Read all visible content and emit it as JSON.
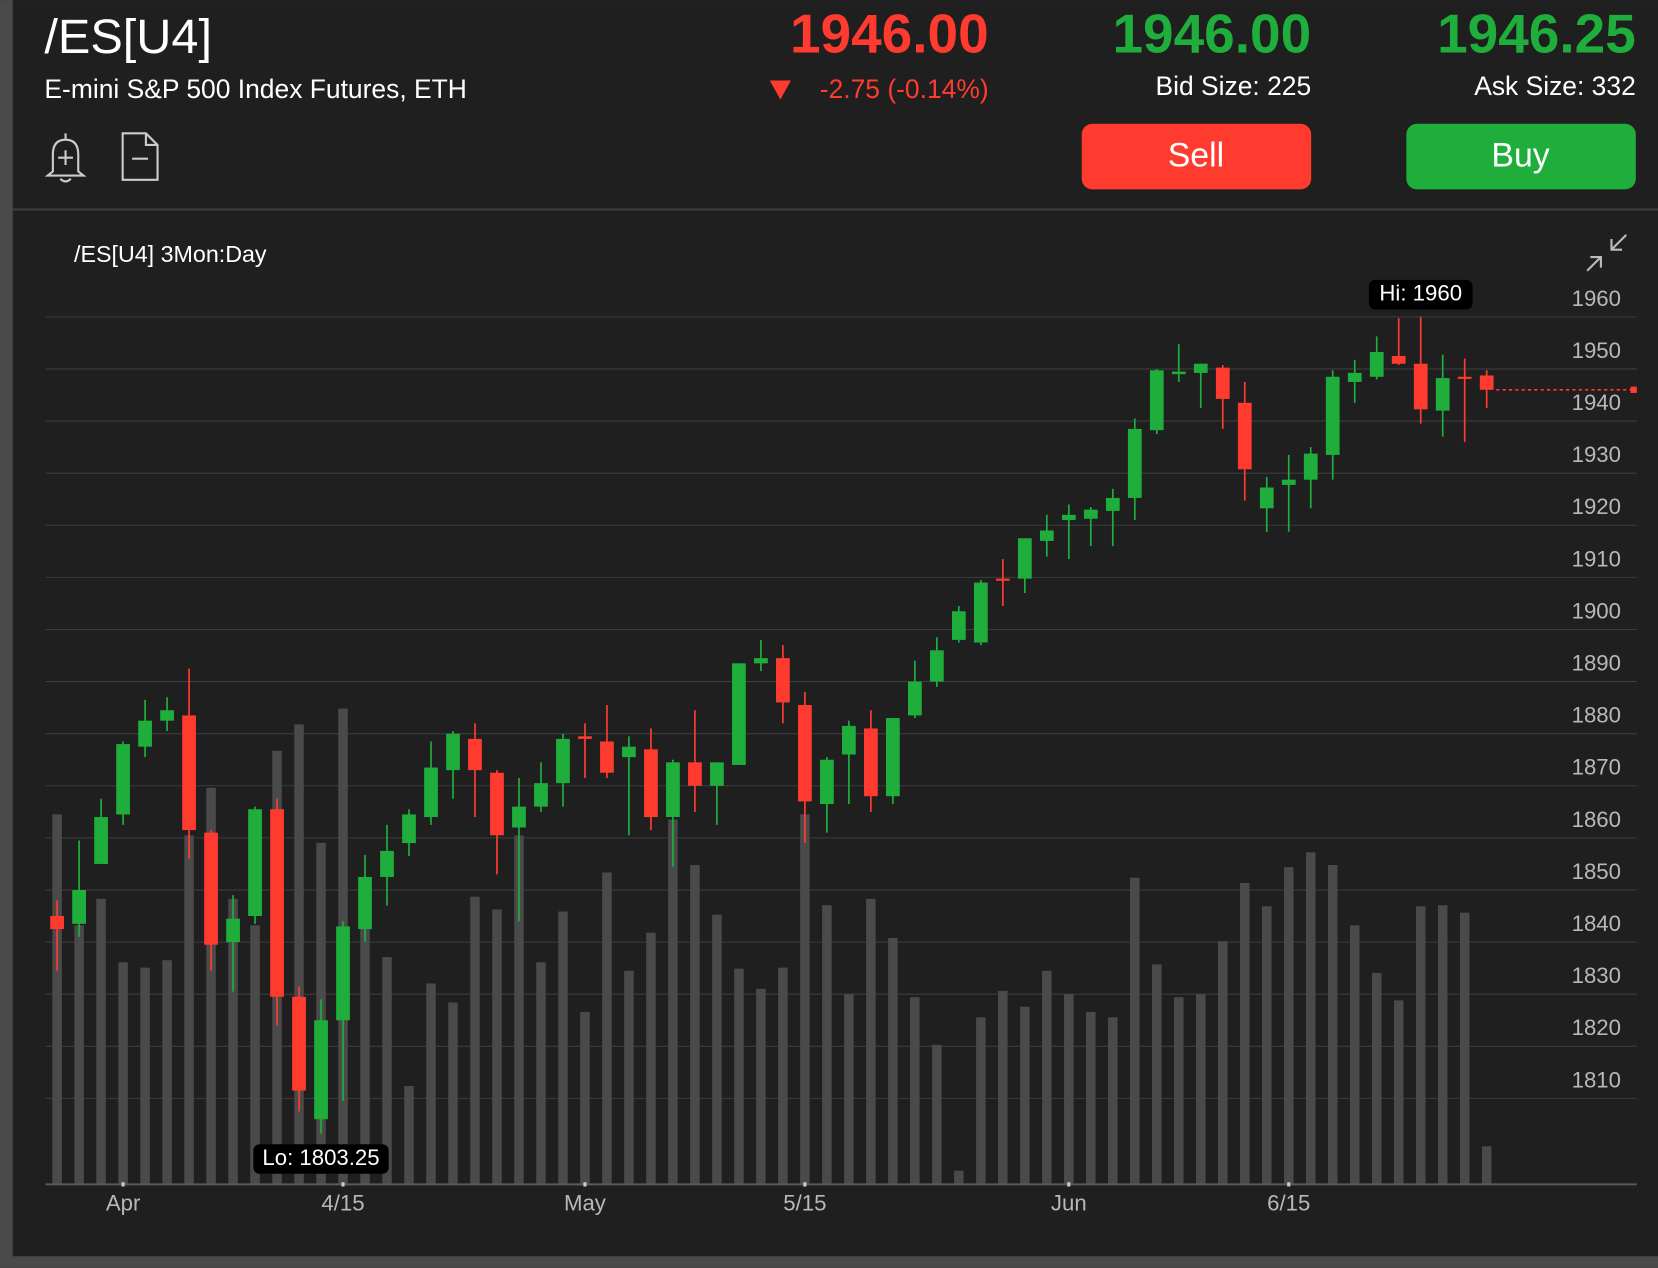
{
  "header": {
    "symbol": "/ES[U4]",
    "description": "E-mini S&P 500 Index Futures, ETH",
    "last": "1946.00",
    "change": "-2.75 (-0.14%)",
    "bid": "1946.00",
    "bid_size": "Bid Size: 225",
    "ask": "1946.25",
    "ask_size": "Ask Size: 332",
    "sell": "Sell",
    "buy": "Buy"
  },
  "chart_data": {
    "type": "candlestick",
    "title": "/ES[U4] 3Mon:Day",
    "categories": [
      null,
      null,
      null,
      "Apr",
      null,
      null,
      null,
      null,
      null,
      null,
      null,
      null,
      null,
      "4/15",
      null,
      null,
      null,
      null,
      null,
      null,
      null,
      null,
      null,
      null,
      "May",
      null,
      null,
      null,
      null,
      null,
      null,
      null,
      null,
      null,
      "5/15",
      null,
      null,
      null,
      null,
      null,
      null,
      null,
      null,
      null,
      null,
      null,
      "Jun",
      null,
      null,
      null,
      null,
      null,
      null,
      null,
      null,
      null,
      "6/15",
      null,
      null,
      null,
      null,
      null,
      null,
      null,
      null,
      null
    ],
    "open": [
      1845,
      1843.5,
      1855,
      1864.5,
      1877.5,
      1882.5,
      1883.5,
      1861,
      1840,
      1845,
      1865.5,
      1829.5,
      1806,
      1825,
      1842.5,
      1852.5,
      1859,
      1864,
      1873,
      1879,
      1872.5,
      1862,
      1866,
      1870.5,
      1879.5,
      1878.5,
      1875.5,
      1877,
      1864,
      1874.5,
      1870,
      1874,
      1893.5,
      1894.5,
      1885.5,
      1866.5,
      1876,
      1881,
      1868,
      1883.5,
      1890,
      1898,
      1897.5,
      1909.75,
      1909.75,
      1917,
      1921,
      1921.25,
      1922.75,
      1925.25,
      1938.25,
      1949,
      1949.25,
      1950.25,
      1943.5,
      1923.25,
      1927.75,
      1928.75,
      1933.5,
      1947.5,
      1948.5,
      1952.5,
      1951,
      1942,
      1948.5,
      1948.75
    ],
    "high": [
      1848,
      1859.5,
      1867.5,
      1878.5,
      1886.5,
      1887,
      1892.5,
      1861.5,
      1849,
      1866,
      1867.5,
      1831.5,
      1829,
      1844,
      1856.75,
      1862.5,
      1865.5,
      1878.5,
      1880.5,
      1882,
      1873,
      1871.5,
      1874.5,
      1880,
      1882,
      1885.5,
      1879.5,
      1881,
      1875,
      1884.5,
      1874.5,
      1893.5,
      1898,
      1897,
      1888,
      1875.5,
      1882.5,
      1884.5,
      1883,
      1894,
      1898.5,
      1904.5,
      1909.5,
      1913.5,
      1917.5,
      1922,
      1924,
      1923.5,
      1927,
      1940.5,
      1950,
      1954.75,
      1951,
      1950.75,
      1947.5,
      1929.25,
      1933.5,
      1935,
      1949.75,
      1951.75,
      1956.25,
      1959.75,
      1960,
      1952.75,
      1952,
      1949.75
    ],
    "low": [
      1834.5,
      1841,
      1855,
      1862.5,
      1875.5,
      1880.5,
      1856,
      1834.5,
      1830.5,
      1843.5,
      1824,
      1807.5,
      1803.25,
      1809.5,
      1840,
      1847,
      1856.5,
      1862.5,
      1867.5,
      1864,
      1853,
      1844,
      1865,
      1866,
      1871.5,
      1871.5,
      1860.5,
      1861.5,
      1854.5,
      1865,
      1862.5,
      1874,
      1892,
      1882,
      1859,
      1861,
      1866.5,
      1865,
      1866.5,
      1883,
      1889,
      1897.5,
      1897,
      1904.5,
      1907,
      1914,
      1913.5,
      1916,
      1916,
      1921,
      1937.5,
      1947.5,
      1942.5,
      1938.5,
      1924.75,
      1918.75,
      1918.75,
      1923.25,
      1928.75,
      1943.5,
      1948,
      1950.75,
      1939.5,
      1937,
      1936,
      1942.5
    ],
    "close": [
      1842.5,
      1850,
      1864,
      1878,
      1882.5,
      1884.5,
      1861.5,
      1839.5,
      1844.5,
      1865.5,
      1829.5,
      1811.5,
      1825,
      1843,
      1852.5,
      1857.5,
      1864.5,
      1873.5,
      1880,
      1873,
      1860.5,
      1866,
      1870.5,
      1879,
      1879,
      1872.5,
      1877.5,
      1864,
      1874.5,
      1870,
      1874.5,
      1893.5,
      1894.5,
      1886,
      1867,
      1875,
      1881.5,
      1868,
      1883,
      1890,
      1896,
      1903.5,
      1909,
      1909.5,
      1917.5,
      1919,
      1922,
      1923,
      1925.25,
      1938.5,
      1949.75,
      1949.5,
      1951,
      1944.25,
      1930.75,
      1927.25,
      1928.75,
      1933.75,
      1948.5,
      1949.25,
      1953.25,
      1951,
      1942.25,
      1948.25,
      1948.25,
      1946
    ],
    "volume": [
      350,
      245,
      270,
      210,
      205,
      212,
      330,
      375,
      270,
      245,
      410,
      435,
      323,
      450,
      270,
      215,
      93,
      190,
      172,
      272,
      260,
      330,
      210,
      258,
      163,
      295,
      202,
      238,
      345,
      302,
      255,
      204,
      185,
      205,
      350,
      264,
      180,
      270,
      233,
      177,
      132,
      13,
      158,
      183,
      168,
      202,
      180,
      163,
      158,
      290,
      208,
      177,
      180,
      230,
      285,
      263,
      300,
      314,
      302,
      245,
      200,
      174,
      263,
      264,
      257,
      36
    ],
    "ylim": [
      1793.5,
      1966
    ],
    "yticks": [
      1810,
      1820,
      1830,
      1840,
      1850,
      1860,
      1870,
      1880,
      1890,
      1900,
      1910,
      1920,
      1930,
      1940,
      1950,
      1960
    ],
    "high_label": "Hi: 1960",
    "low_label": "Lo: 1803.25",
    "last": 1946,
    "up_color": "#1fae3c",
    "down_color": "#ff3b30",
    "volume_color": "#4a4a4a",
    "grid": true
  }
}
